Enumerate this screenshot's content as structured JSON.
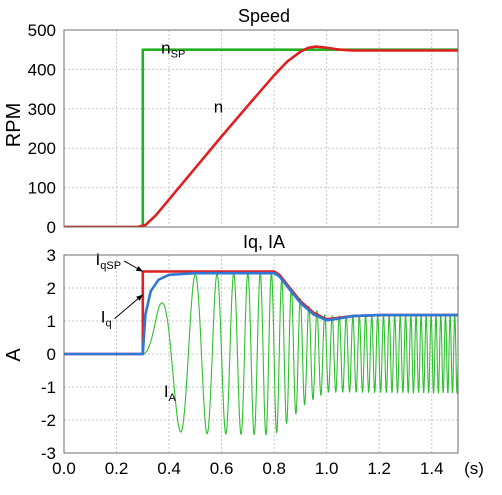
{
  "chart_data": [
    {
      "type": "line",
      "title": "Speed",
      "ylabel": "RPM",
      "xlim": [
        0,
        1.5
      ],
      "ylim": [
        0,
        500
      ],
      "yticks": [
        0,
        100,
        200,
        300,
        400,
        500
      ],
      "grid": true,
      "series": [
        {
          "name": "nSP",
          "color": "#22b022",
          "points": [
            [
              0,
              0
            ],
            [
              0.3,
              0
            ],
            [
              0.3,
              450
            ],
            [
              1.5,
              450
            ]
          ]
        },
        {
          "name": "n",
          "color": "#e02020",
          "points": [
            [
              0,
              0
            ],
            [
              0.28,
              0
            ],
            [
              0.31,
              5
            ],
            [
              0.35,
              30
            ],
            [
              0.4,
              70
            ],
            [
              0.5,
              150
            ],
            [
              0.6,
              230
            ],
            [
              0.7,
              308
            ],
            [
              0.8,
              385
            ],
            [
              0.85,
              420
            ],
            [
              0.9,
              445
            ],
            [
              0.93,
              455
            ],
            [
              0.96,
              458
            ],
            [
              1.0,
              455
            ],
            [
              1.05,
              450
            ],
            [
              1.1,
              448
            ],
            [
              1.2,
              448
            ],
            [
              1.5,
              448
            ]
          ]
        }
      ],
      "annotations": [
        {
          "text": "n",
          "sub": "SP",
          "x": 0.37,
          "y": 440
        },
        {
          "text": "n",
          "sub": "",
          "x": 0.57,
          "y": 290
        }
      ]
    },
    {
      "type": "line",
      "title": "Iq, IA",
      "ylabel": "A",
      "xlabel": "(s)",
      "xlim": [
        0,
        1.5
      ],
      "ylim": [
        -3,
        3
      ],
      "xticks": [
        0.0,
        0.2,
        0.4,
        0.6,
        0.8,
        1.0,
        1.2,
        1.4
      ],
      "xtick_labels": [
        "0.0",
        "0.2",
        "0.4",
        "0.6",
        "0.8",
        "1.0",
        "1.2",
        "1.4"
      ],
      "yticks": [
        -3,
        -2,
        -1,
        0,
        1,
        2,
        3
      ],
      "grid": true,
      "series": [
        {
          "name": "IqSP",
          "color": "#e02020",
          "points": [
            [
              0,
              0
            ],
            [
              0.3,
              0
            ],
            [
              0.3,
              2.5
            ],
            [
              0.8,
              2.5
            ],
            [
              0.82,
              2.4
            ],
            [
              0.86,
              2.0
            ],
            [
              0.9,
              1.6
            ],
            [
              0.95,
              1.25
            ],
            [
              1.0,
              1.05
            ],
            [
              1.05,
              1.1
            ],
            [
              1.1,
              1.15
            ],
            [
              1.2,
              1.18
            ],
            [
              1.5,
              1.18
            ]
          ]
        },
        {
          "name": "Iq",
          "color": "#2f78d8",
          "points": [
            [
              0,
              0
            ],
            [
              0.3,
              0
            ],
            [
              0.31,
              1.2
            ],
            [
              0.33,
              1.9
            ],
            [
              0.36,
              2.25
            ],
            [
              0.4,
              2.4
            ],
            [
              0.5,
              2.45
            ],
            [
              0.8,
              2.45
            ],
            [
              0.82,
              2.35
            ],
            [
              0.86,
              1.95
            ],
            [
              0.9,
              1.55
            ],
            [
              0.95,
              1.2
            ],
            [
              1.0,
              1.02
            ],
            [
              1.05,
              1.08
            ],
            [
              1.1,
              1.15
            ],
            [
              1.2,
              1.18
            ],
            [
              1.5,
              1.18
            ]
          ]
        },
        {
          "name": "IA",
          "color": "#2ec02e",
          "oscillation": {
            "start": 0.3,
            "end": 1.5,
            "envelope": [
              [
                0.3,
                0
              ],
              [
                0.33,
                0.6
              ],
              [
                0.36,
                1.4
              ],
              [
                0.4,
                2.1
              ],
              [
                0.45,
                2.4
              ],
              [
                0.8,
                2.45
              ],
              [
                0.86,
                2.0
              ],
              [
                0.92,
                1.5
              ],
              [
                1.0,
                1.15
              ],
              [
                1.1,
                1.15
              ],
              [
                1.5,
                1.18
              ]
            ],
            "frequency": [
              [
                0.3,
                3
              ],
              [
                0.4,
                6
              ],
              [
                0.5,
                10
              ],
              [
                0.6,
                15
              ],
              [
                0.8,
                25
              ],
              [
                1.0,
                35
              ],
              [
                1.2,
                45
              ],
              [
                1.5,
                58
              ]
            ]
          }
        }
      ],
      "annotations": [
        {
          "text": "I",
          "sub": "qSP",
          "x": 0.12,
          "y": 2.7,
          "arrow_to": [
            0.3,
            2.5
          ]
        },
        {
          "text": "I",
          "sub": "q",
          "x": 0.14,
          "y": 0.95,
          "arrow_to": [
            0.3,
            1.8
          ]
        },
        {
          "text": "I",
          "sub": "A",
          "x": 0.38,
          "y": -1.3
        }
      ]
    }
  ]
}
